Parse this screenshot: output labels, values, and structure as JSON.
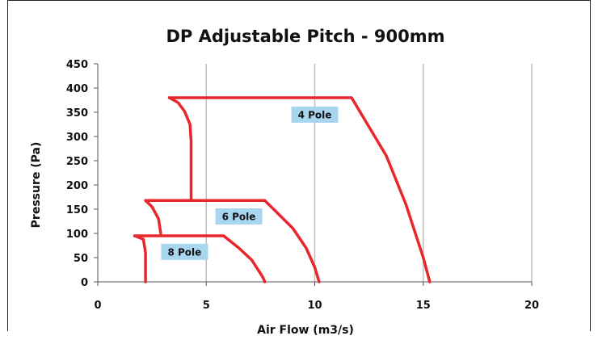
{
  "chart_data": {
    "type": "line",
    "title": "DP Adjustable Pitch - 900mm",
    "xlabel": "Air Flow (m3/s)",
    "ylabel": "Pressure (Pa)",
    "xlim": [
      0,
      20
    ],
    "ylim": [
      0,
      450
    ],
    "xticks": [
      "0",
      "5",
      "10",
      "15",
      "20"
    ],
    "yticks": [
      "0",
      "50",
      "100",
      "150",
      "200",
      "250",
      "300",
      "350",
      "400",
      "450"
    ],
    "x_tick_values": [
      0,
      5,
      10,
      15,
      20
    ],
    "y_tick_values": [
      0,
      50,
      100,
      150,
      200,
      250,
      300,
      350,
      400,
      450
    ],
    "grid": "vertical",
    "color": "#e8262b",
    "series": [
      {
        "label": "4 Pole",
        "points": [
          [
            3.3,
            380
          ],
          [
            11.7,
            380
          ],
          [
            12.5,
            320
          ],
          [
            13.3,
            260
          ],
          [
            14.2,
            160
          ],
          [
            15.0,
            50
          ],
          [
            15.3,
            0
          ]
        ],
        "left_points": [
          [
            3.3,
            380
          ],
          [
            3.7,
            370
          ],
          [
            4.0,
            352
          ],
          [
            4.25,
            325
          ],
          [
            4.3,
            290
          ],
          [
            4.3,
            170
          ]
        ]
      },
      {
        "label": "6 Pole",
        "points": [
          [
            2.2,
            168
          ],
          [
            7.7,
            168
          ],
          [
            9.0,
            110
          ],
          [
            9.6,
            70
          ],
          [
            10.0,
            30
          ],
          [
            10.2,
            0
          ]
        ],
        "left_points": [
          [
            2.2,
            168
          ],
          [
            2.5,
            155
          ],
          [
            2.8,
            130
          ],
          [
            2.9,
            100
          ]
        ]
      },
      {
        "label": "8 Pole",
        "points": [
          [
            1.7,
            95
          ],
          [
            5.8,
            95
          ],
          [
            6.5,
            70
          ],
          [
            7.1,
            45
          ],
          [
            7.6,
            10
          ],
          [
            7.7,
            0
          ]
        ],
        "left_points": [
          [
            1.7,
            95
          ],
          [
            2.1,
            88
          ],
          [
            2.2,
            60
          ],
          [
            2.2,
            0
          ]
        ]
      }
    ],
    "annotations": [
      {
        "text": "4 Pole",
        "x": 10.0,
        "y": 345
      },
      {
        "text": "6 Pole",
        "x": 6.5,
        "y": 135
      },
      {
        "text": "8 Pole",
        "x": 4.0,
        "y": 62
      }
    ]
  }
}
